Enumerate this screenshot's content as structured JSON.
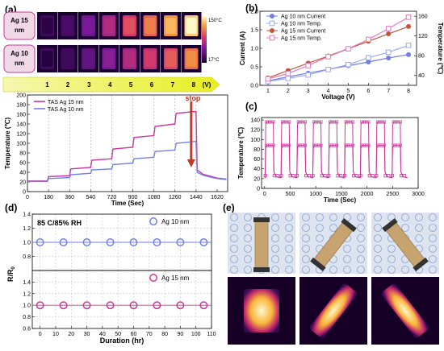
{
  "panels": {
    "a": "(a)",
    "b": "(b)",
    "c": "(c)",
    "d": "(d)",
    "e": "(e)"
  },
  "colors": {
    "ag15": "#c8379b",
    "ag10": "#6f7fe6",
    "stop": "#c0392b",
    "b_ag10_current": "#6f7fe6",
    "b_ag10_temp": "#9aa9ee",
    "b_ag15_current": "#c0563a",
    "b_ag15_temp": "#e07ab8"
  },
  "thermal_strip": {
    "row_labels": [
      "Ag 15 nm",
      "Ag 10 nm"
    ],
    "frame_levels": [
      0.05,
      0.15,
      0.3,
      0.45,
      0.6,
      0.72,
      0.85,
      1.0
    ],
    "colorbar_max": "150°C",
    "colorbar_min": "17°C",
    "steps": [
      "1",
      "2",
      "3",
      "4",
      "5",
      "6",
      "7",
      "8"
    ],
    "unit": "(V)"
  },
  "chart_data": [
    {
      "id": "a",
      "type": "line",
      "xlabel": "Time (Sec)",
      "ylabel": "Temperature (℃)",
      "xlim": [
        0,
        1710
      ],
      "ylim": [
        0,
        200
      ],
      "xticks": [
        0,
        180,
        360,
        540,
        720,
        900,
        1080,
        1260,
        1440,
        1620
      ],
      "yticks": [
        0,
        20,
        40,
        60,
        80,
        100,
        120,
        140,
        160,
        180,
        200
      ],
      "legend": "top-left",
      "annotation": "stop",
      "series": [
        {
          "name": "TAS Ag 15 nm",
          "x": [
            0,
            170,
            180,
            360,
            370,
            540,
            550,
            720,
            730,
            900,
            910,
            1080,
            1090,
            1260,
            1270,
            1440,
            1450,
            1500,
            1560,
            1620,
            1700
          ],
          "y": [
            22,
            22,
            31,
            33,
            47,
            50,
            65,
            68,
            88,
            92,
            112,
            116,
            135,
            140,
            162,
            166,
            45,
            36,
            32,
            28,
            26
          ]
        },
        {
          "name": "TAS Ag 10 nm",
          "x": [
            0,
            170,
            180,
            360,
            370,
            540,
            550,
            720,
            730,
            900,
            910,
            1080,
            1090,
            1260,
            1270,
            1440,
            1450,
            1500,
            1560,
            1620,
            1700
          ],
          "y": [
            21,
            21,
            27,
            29,
            35,
            38,
            45,
            47,
            56,
            59,
            68,
            71,
            83,
            86,
            100,
            104,
            40,
            34,
            30,
            27,
            25
          ]
        }
      ]
    },
    {
      "id": "b",
      "type": "line",
      "xlabel": "Voltage (V)",
      "ylabel": "Current (A)",
      "ylabel2": "Temperature (℃)",
      "xlim": [
        0.6,
        8.4
      ],
      "ylim": [
        0,
        2.0
      ],
      "y2lim": [
        20,
        170
      ],
      "xticks": [
        1,
        2,
        3,
        4,
        5,
        6,
        7,
        8
      ],
      "yticks": [
        0.0,
        0.5,
        1.0,
        1.5,
        2.0
      ],
      "y2ticks": [
        40,
        80,
        120,
        160
      ],
      "legend": "top-left",
      "x": [
        1,
        2,
        3,
        4,
        5,
        6,
        7,
        8
      ],
      "series": [
        {
          "name": "Ag 10 nm Current",
          "axis": "left",
          "marker": "filled-circle",
          "values": [
            0.12,
            0.23,
            0.33,
            0.43,
            0.53,
            0.63,
            0.74,
            0.83
          ]
        },
        {
          "name": "Ag 10 nm Temp.",
          "axis": "right",
          "marker": "open-square",
          "values": [
            28,
            34,
            41,
            52,
            62,
            76,
            87,
            101
          ]
        },
        {
          "name": "Ag 15 nm Current",
          "axis": "left",
          "marker": "filled-circle",
          "values": [
            0.2,
            0.4,
            0.6,
            0.79,
            0.99,
            1.19,
            1.39,
            1.59
          ]
        },
        {
          "name": "Ag 15 nm Temp.",
          "axis": "right",
          "marker": "open-square",
          "values": [
            33,
            44,
            60,
            78,
            94,
            113,
            135,
            158
          ]
        }
      ]
    },
    {
      "id": "c",
      "type": "line",
      "xlabel": "Time (Sec)",
      "ylabel": "Temperature (℃)",
      "xlim": [
        -60,
        3000
      ],
      "ylim": [
        0,
        145
      ],
      "xticks": [
        0,
        500,
        1000,
        1500,
        2000,
        2500,
        3000
      ],
      "yticks": [
        0,
        20,
        40,
        60,
        80,
        100,
        120,
        140
      ],
      "cycles": 9,
      "cycle_period": 310,
      "on_duration": 160,
      "plateau_values": [
        88,
        136
      ],
      "baseline_value": 22
    },
    {
      "id": "d",
      "type": "scatter",
      "annotation": "85 C/85% RH",
      "xlabel": "Duration (hr)",
      "ylabel": "R/R",
      "ylabel_sub": "0",
      "xlim": [
        -5,
        110
      ],
      "xticks": [
        0,
        10,
        20,
        30,
        40,
        50,
        60,
        70,
        80,
        90,
        100,
        110
      ],
      "subplots": [
        {
          "series_name": "Ag 10 nm",
          "color": "#6f7fe6",
          "ylim": [
            0.6,
            1.4
          ],
          "yticks": [
            0.6,
            0.8,
            1.0,
            1.2,
            1.4
          ],
          "x": [
            0,
            15,
            30,
            45,
            60,
            75,
            90,
            105
          ],
          "y": [
            1.0,
            1.0,
            1.0,
            1.0,
            1.0,
            1.0,
            1.0,
            1.0
          ]
        },
        {
          "series_name": "Ag 15 nm",
          "color": "#c8379b",
          "ylim": [
            0.6,
            1.6
          ],
          "yticks": [
            0.6,
            0.8,
            1.0,
            1.2,
            1.4,
            1.6
          ],
          "x": [
            0,
            15,
            30,
            45,
            60,
            75,
            90,
            105
          ],
          "y": [
            1.0,
            1.0,
            1.0,
            1.0,
            1.0,
            1.0,
            1.0,
            1.0
          ]
        }
      ]
    }
  ]
}
